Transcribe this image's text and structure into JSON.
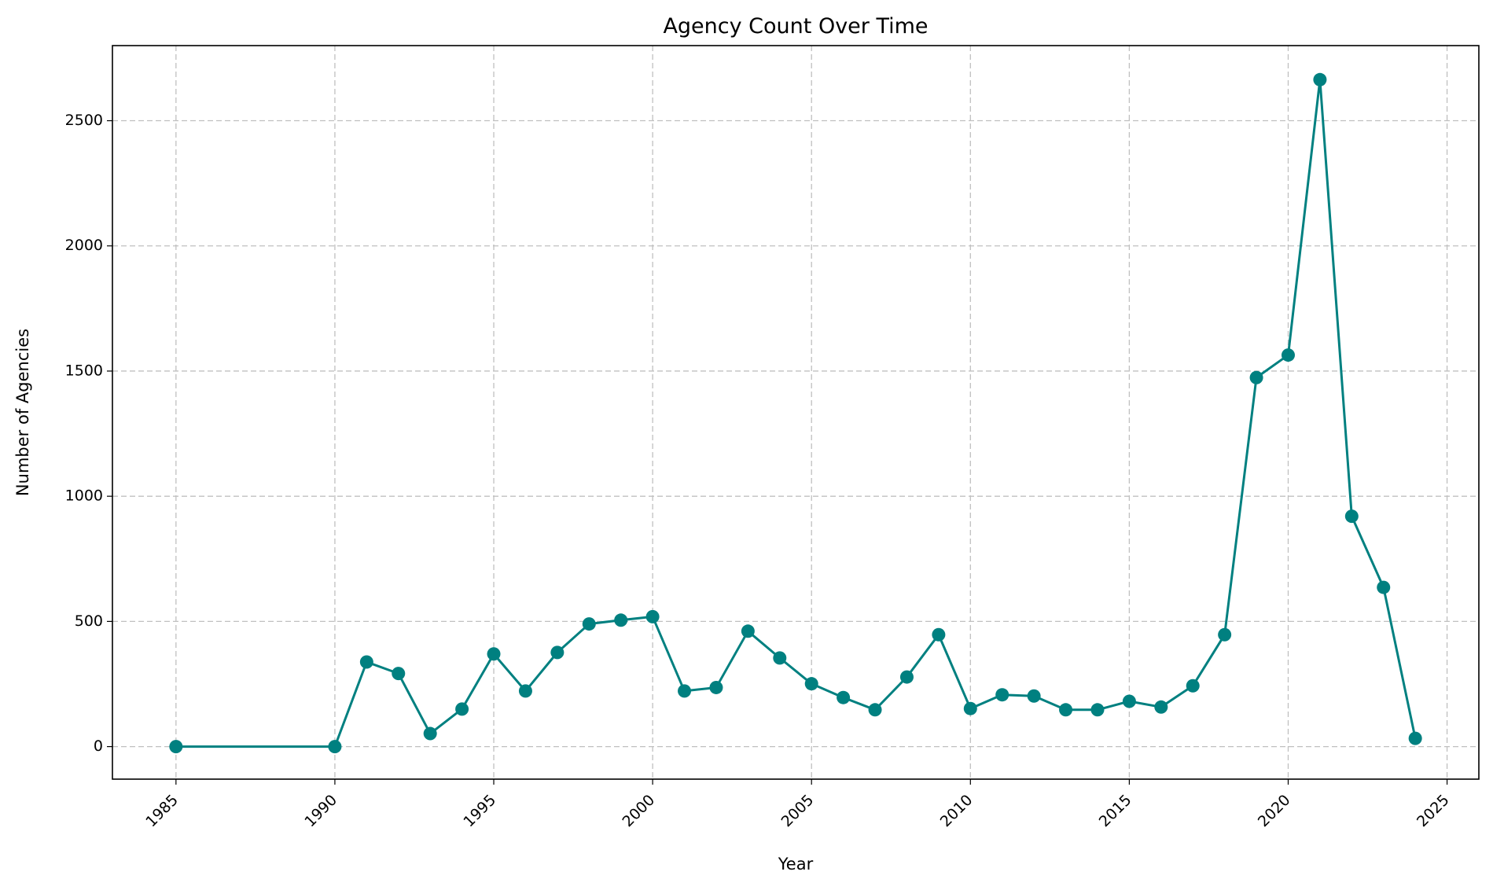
{
  "chart_data": {
    "type": "line",
    "title": "Agency Count Over Time",
    "xlabel": "Year",
    "ylabel": "Number of Agencies",
    "xlim": [
      1983,
      2026
    ],
    "ylim": [
      -130,
      2800
    ],
    "xticks": [
      1985,
      1990,
      1995,
      2000,
      2005,
      2010,
      2015,
      2020,
      2025
    ],
    "yticks": [
      0,
      500,
      1000,
      1500,
      2000,
      2500
    ],
    "xtick_rotation": 45,
    "grid": true,
    "color": "#008080",
    "marker": "circle",
    "x": [
      1985,
      1990,
      1991,
      1992,
      1993,
      1994,
      1995,
      1996,
      1997,
      1998,
      1999,
      2000,
      2001,
      2002,
      2003,
      2004,
      2005,
      2006,
      2007,
      2008,
      2009,
      2010,
      2011,
      2012,
      2013,
      2014,
      2015,
      2016,
      2017,
      2018,
      2019,
      2020,
      2021,
      2022,
      2023,
      2024
    ],
    "y": [
      0,
      0,
      338,
      292,
      52,
      150,
      370,
      222,
      376,
      490,
      505,
      519,
      222,
      236,
      461,
      354,
      251,
      196,
      147,
      278,
      447,
      152,
      207,
      202,
      147,
      147,
      181,
      158,
      243,
      447,
      1474,
      1564,
      2664,
      920,
      636,
      33
    ]
  }
}
